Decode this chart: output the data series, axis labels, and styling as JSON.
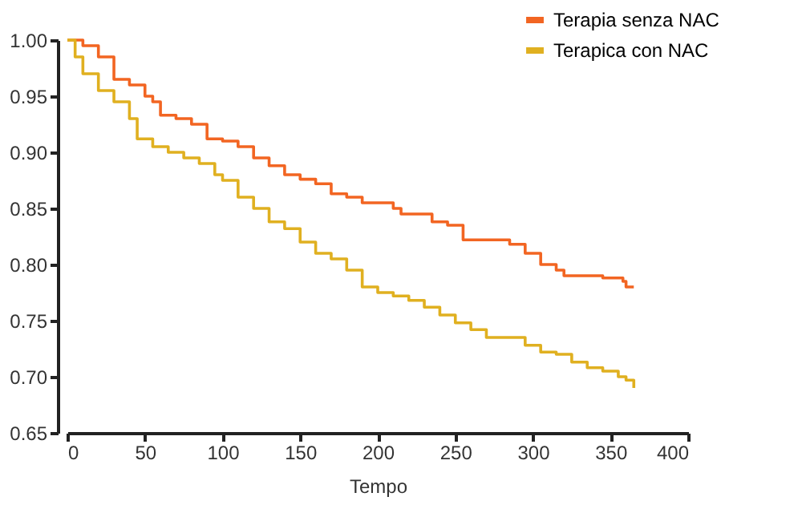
{
  "chart_data": {
    "type": "step",
    "xlabel": "Tempo",
    "xlim": [
      0,
      400
    ],
    "xticks": [
      0,
      50,
      100,
      150,
      200,
      250,
      300,
      350,
      400
    ],
    "ylim": [
      0.65,
      1.0
    ],
    "yticks": [
      {
        "value": 0.65,
        "label": "0.65"
      },
      {
        "value": 0.7,
        "label": "0.70"
      },
      {
        "value": 0.75,
        "label": "0.75"
      },
      {
        "value": 0.8,
        "label": "0.80"
      },
      {
        "value": 0.85,
        "label": "0.85"
      },
      {
        "value": 0.9,
        "label": "0.90"
      },
      {
        "value": 0.95,
        "label": "0.95"
      },
      {
        "value": 1.0,
        "label": "1.00"
      }
    ],
    "grid": false,
    "legend": "top right",
    "marker": "none",
    "series": [
      {
        "name": "Terapia senza NAC",
        "color": "#f26522",
        "x": [
          0,
          10,
          20,
          30,
          40,
          50,
          55,
          60,
          70,
          80,
          90,
          100,
          110,
          120,
          130,
          140,
          150,
          160,
          170,
          180,
          190,
          200,
          210,
          215,
          225,
          235,
          245,
          255,
          275,
          285,
          295,
          305,
          315,
          320,
          345,
          358,
          360,
          365
        ],
        "values": [
          1.0,
          0.995,
          0.985,
          0.965,
          0.96,
          0.95,
          0.945,
          0.933,
          0.93,
          0.925,
          0.912,
          0.91,
          0.905,
          0.895,
          0.888,
          0.88,
          0.876,
          0.872,
          0.863,
          0.86,
          0.855,
          0.855,
          0.85,
          0.845,
          0.845,
          0.838,
          0.835,
          0.822,
          0.822,
          0.818,
          0.81,
          0.8,
          0.795,
          0.79,
          0.788,
          0.785,
          0.78,
          0.78
        ]
      },
      {
        "name": "Terapica con NAC",
        "color": "#e0b020",
        "x": [
          0,
          5,
          10,
          20,
          30,
          40,
          45,
          55,
          65,
          75,
          85,
          95,
          100,
          110,
          120,
          130,
          140,
          150,
          160,
          170,
          180,
          190,
          200,
          210,
          220,
          230,
          240,
          250,
          260,
          270,
          285,
          295,
          305,
          315,
          325,
          335,
          345,
          355,
          360,
          365
        ],
        "values": [
          1.0,
          0.985,
          0.97,
          0.955,
          0.945,
          0.93,
          0.912,
          0.905,
          0.9,
          0.895,
          0.89,
          0.88,
          0.875,
          0.86,
          0.85,
          0.838,
          0.832,
          0.82,
          0.81,
          0.805,
          0.795,
          0.78,
          0.775,
          0.772,
          0.768,
          0.762,
          0.755,
          0.748,
          0.742,
          0.735,
          0.735,
          0.728,
          0.722,
          0.72,
          0.713,
          0.708,
          0.705,
          0.7,
          0.697,
          0.69
        ]
      }
    ]
  }
}
